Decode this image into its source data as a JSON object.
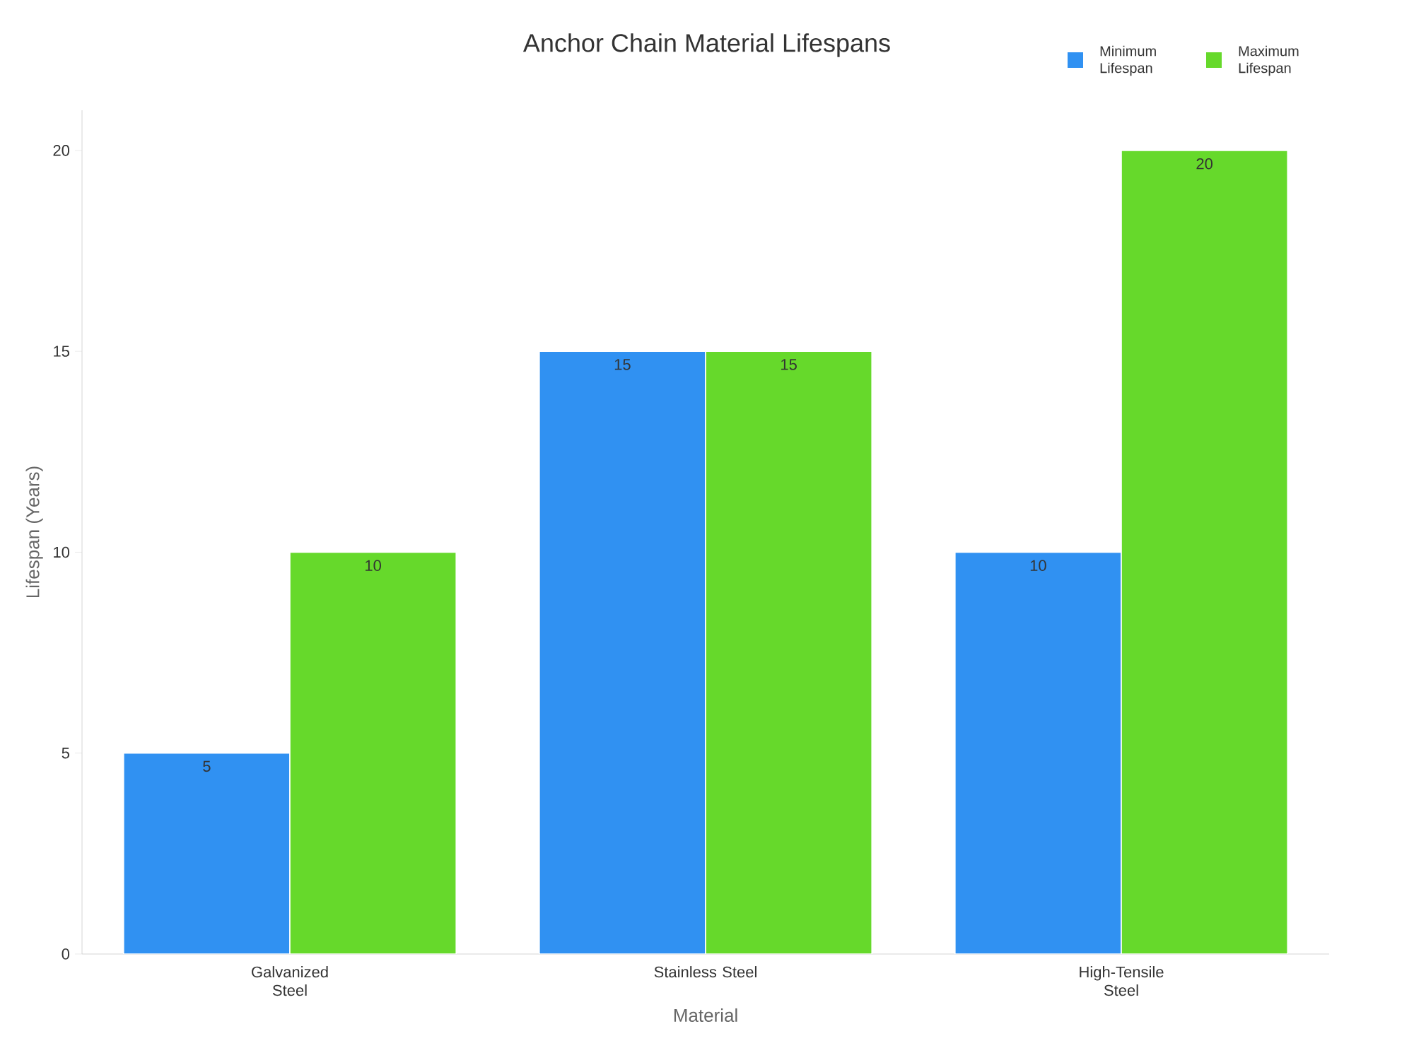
{
  "chart_data": {
    "type": "bar",
    "title": "Anchor Chain Material Lifespans",
    "xlabel": "Material",
    "ylabel": "Lifespan (Years)",
    "categories": [
      "Galvanized Steel",
      "Stainless Steel",
      "High-Tensile Steel"
    ],
    "series": [
      {
        "name": "Minimum Lifespan",
        "color": "#3091f2",
        "values": [
          5,
          15,
          10
        ]
      },
      {
        "name": "Maximum Lifespan",
        "color": "#66d92b",
        "values": [
          10,
          15,
          20
        ]
      }
    ],
    "ylim": [
      0,
      21
    ],
    "yticks": [
      0,
      5,
      10,
      15,
      20
    ],
    "grid": false,
    "legend": "top right",
    "data_labels": true
  }
}
